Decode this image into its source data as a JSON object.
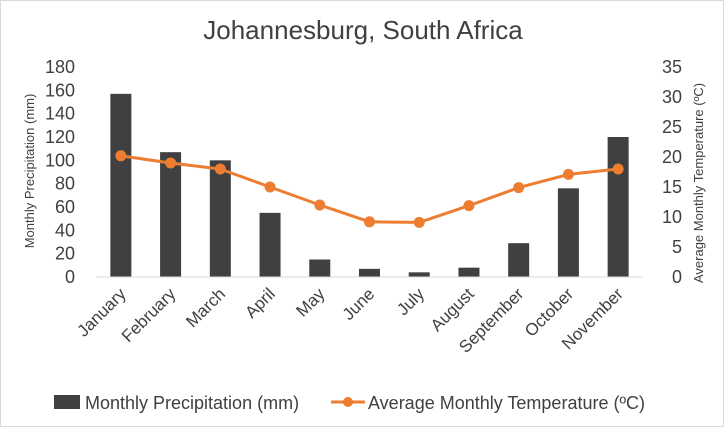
{
  "chart_data": {
    "type": "bar-line-combo",
    "title": "Johannesburg, South Africa",
    "categories": [
      "January",
      "February",
      "March",
      "April",
      "May",
      "June",
      "July",
      "August",
      "September",
      "October",
      "November"
    ],
    "series": [
      {
        "name": "Monthly Precipitation  (mm)",
        "type": "bar",
        "axis": "left",
        "color": "#404040",
        "values": [
          157,
          107,
          100,
          55,
          15,
          7,
          4,
          8,
          29,
          76,
          120
        ]
      },
      {
        "name": "Average Monthly  Temperature (ºC)",
        "type": "line",
        "axis": "right",
        "color": "#ed7d31",
        "values": [
          20.2,
          19.0,
          18.0,
          15.0,
          12.0,
          9.2,
          9.1,
          11.9,
          14.9,
          17.1,
          18.0
        ]
      }
    ],
    "y_left": {
      "label": "Monthly Precipitation  (mm)",
      "ylim": [
        0,
        180
      ],
      "ticks": [
        "0",
        "20",
        "40",
        "60",
        "80",
        "100",
        "120",
        "140",
        "160",
        "180"
      ]
    },
    "y_right": {
      "label": "Average Monthly  Temperature (ºC)",
      "ylim": [
        0,
        35
      ],
      "ticks": [
        "0",
        "5",
        "10",
        "15",
        "20",
        "25",
        "30",
        "35"
      ]
    },
    "grid": false,
    "legend": "bottom"
  }
}
